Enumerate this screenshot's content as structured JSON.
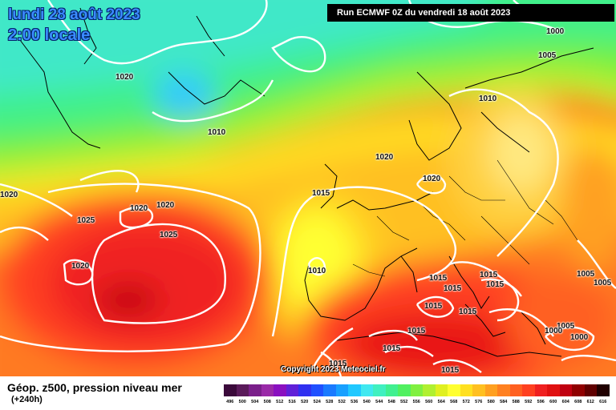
{
  "header": {
    "date_line": "lundi 28 août 2023",
    "time_line": "2:00 locale",
    "run_info": "Run ECMWF 0Z du vendredi 18 août 2023"
  },
  "footer": {
    "legend_title": "Géop. z500, pression niveau mer",
    "legend_subtitle": "(+240h)",
    "copyright": "Copyright 2023 Meteociel.fr"
  },
  "isobar_labels": [
    "1000",
    "1005",
    "1010",
    "1020",
    "1020",
    "1010",
    "1020",
    "1020",
    "1015",
    "1020",
    "1020",
    "1025",
    "1025",
    "1020",
    "1010",
    "1015",
    "1015",
    "1015",
    "1015",
    "1015",
    "1015",
    "1015",
    "1015",
    "1015",
    "1005",
    "1005",
    "1005",
    "1000",
    "1000",
    "1015"
  ],
  "scale": {
    "labels": [
      "496",
      "500",
      "504",
      "508",
      "512",
      "516",
      "520",
      "524",
      "528",
      "532",
      "536",
      "540",
      "544",
      "548",
      "552",
      "556",
      "560",
      "564",
      "568",
      "572",
      "576",
      "580",
      "584",
      "588",
      "592",
      "596",
      "600",
      "604",
      "608",
      "612",
      "616"
    ],
    "colors": [
      "#3b0a3b",
      "#5a1a5a",
      "#7a1f8a",
      "#9a2aa8",
      "#8a10c0",
      "#6020d8",
      "#3030f0",
      "#2050ff",
      "#1a7aff",
      "#18a0ff",
      "#20c8ff",
      "#40e8f0",
      "#40f0c0",
      "#40f090",
      "#50f060",
      "#80f040",
      "#b0f030",
      "#e0f020",
      "#ffff30",
      "#ffe020",
      "#ffc020",
      "#ffa020",
      "#ff8020",
      "#ff6020",
      "#ff4020",
      "#f02020",
      "#e01010",
      "#c00010",
      "#900000",
      "#600000",
      "#200000"
    ]
  }
}
